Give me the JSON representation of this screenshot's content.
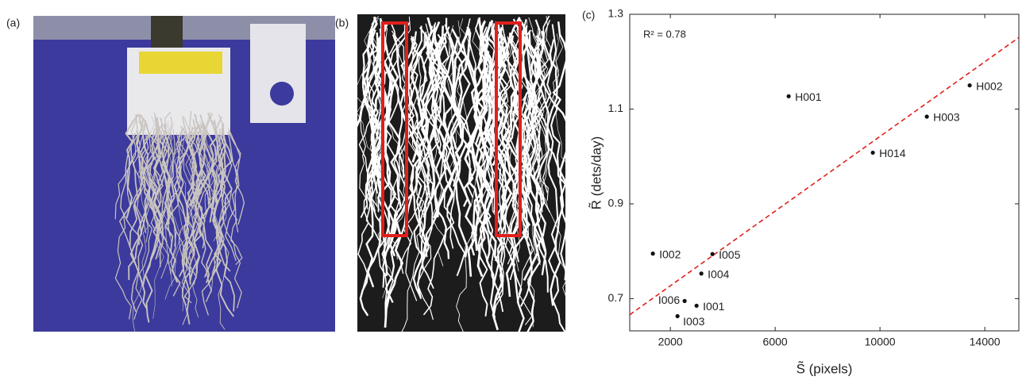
{
  "panel_labels": [
    "(a)",
    "(b)",
    "(c)"
  ],
  "chart_data": {
    "type": "scatter",
    "annotation": "R² = 0.78",
    "x_label": "S̃ (pixels)",
    "y_label": "R̃ (dets/day)",
    "labels": [
      "H001",
      "H002",
      "H003",
      "H014",
      "I002",
      "I005",
      "I004",
      "I006",
      "I001",
      "I003"
    ],
    "x": [
      6515,
      13424,
      11788,
      9727,
      1333,
      3606,
      3182,
      2545,
      3000,
      2273
    ],
    "values": [
      1.127,
      1.15,
      1.084,
      1.008,
      0.795,
      0.794,
      0.753,
      0.695,
      0.685,
      0.663
    ],
    "color": "#111111",
    "fit_line": {
      "x": [
        450,
        15300
      ],
      "y": [
        0.666,
        1.251
      ],
      "color": "#e0201b"
    },
    "xlim": [
      450,
      15300
    ],
    "ylim": [
      0.632,
      1.3
    ],
    "xticks": [
      2000,
      6000,
      10000,
      14000
    ],
    "yticks": [
      0.7,
      0.9,
      1.1,
      1.3
    ]
  }
}
